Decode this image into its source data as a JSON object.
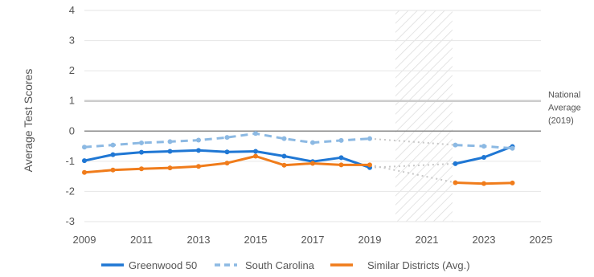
{
  "chart_data": {
    "type": "line",
    "title": "",
    "xlabel": "",
    "ylabel": "Average Test Scores",
    "xlim": [
      2009,
      2025
    ],
    "ylim": [
      -3,
      4
    ],
    "x_ticks": [
      2009,
      2011,
      2013,
      2015,
      2017,
      2019,
      2021,
      2023,
      2025
    ],
    "y_ticks": [
      -3,
      -2,
      -1,
      0,
      1,
      2,
      3,
      4
    ],
    "gap_region": [
      2019.9,
      2021.9
    ],
    "reference_line": {
      "y": 1,
      "label_lines": [
        "National",
        "Average",
        "(2019)"
      ]
    },
    "zero_line": true,
    "legend_position": "bottom",
    "series": [
      {
        "name": "Greenwood 50",
        "color": "#1f77d4",
        "style": "solid",
        "points": [
          [
            2009,
            -0.98
          ],
          [
            2010,
            -0.78
          ],
          [
            2011,
            -0.7
          ],
          [
            2012,
            -0.67
          ],
          [
            2013,
            -0.64
          ],
          [
            2014,
            -0.69
          ],
          [
            2015,
            -0.67
          ],
          [
            2016,
            -0.83
          ],
          [
            2017,
            -1.01
          ],
          [
            2018,
            -0.88
          ],
          [
            2019,
            -1.21
          ],
          [
            2022,
            -1.08
          ],
          [
            2023,
            -0.87
          ],
          [
            2024,
            -0.51
          ]
        ],
        "gap_segment": [
          [
            2019,
            -1.21
          ],
          [
            2022,
            -1.08
          ]
        ]
      },
      {
        "name": "South Carolina",
        "color": "#8cb9e3",
        "style": "dashed",
        "points": [
          [
            2009,
            -0.53
          ],
          [
            2010,
            -0.46
          ],
          [
            2011,
            -0.39
          ],
          [
            2012,
            -0.35
          ],
          [
            2013,
            -0.3
          ],
          [
            2014,
            -0.21
          ],
          [
            2015,
            -0.08
          ],
          [
            2016,
            -0.25
          ],
          [
            2017,
            -0.38
          ],
          [
            2018,
            -0.31
          ],
          [
            2019,
            -0.25
          ],
          [
            2022,
            -0.46
          ],
          [
            2023,
            -0.5
          ],
          [
            2024,
            -0.57
          ]
        ],
        "gap_segment": [
          [
            2019,
            -0.25
          ],
          [
            2022,
            -0.46
          ]
        ]
      },
      {
        "name": "Similar Districts (Avg.)",
        "color": "#f07c1b",
        "style": "solid",
        "points": [
          [
            2009,
            -1.37
          ],
          [
            2010,
            -1.29
          ],
          [
            2011,
            -1.25
          ],
          [
            2012,
            -1.22
          ],
          [
            2013,
            -1.17
          ],
          [
            2014,
            -1.06
          ],
          [
            2015,
            -0.83
          ],
          [
            2016,
            -1.13
          ],
          [
            2017,
            -1.07
          ],
          [
            2018,
            -1.12
          ],
          [
            2019,
            -1.12
          ],
          [
            2022,
            -1.71
          ],
          [
            2023,
            -1.74
          ],
          [
            2024,
            -1.72
          ]
        ],
        "gap_segment": [
          [
            2019,
            -1.12
          ],
          [
            2022,
            -1.71
          ]
        ]
      }
    ]
  }
}
